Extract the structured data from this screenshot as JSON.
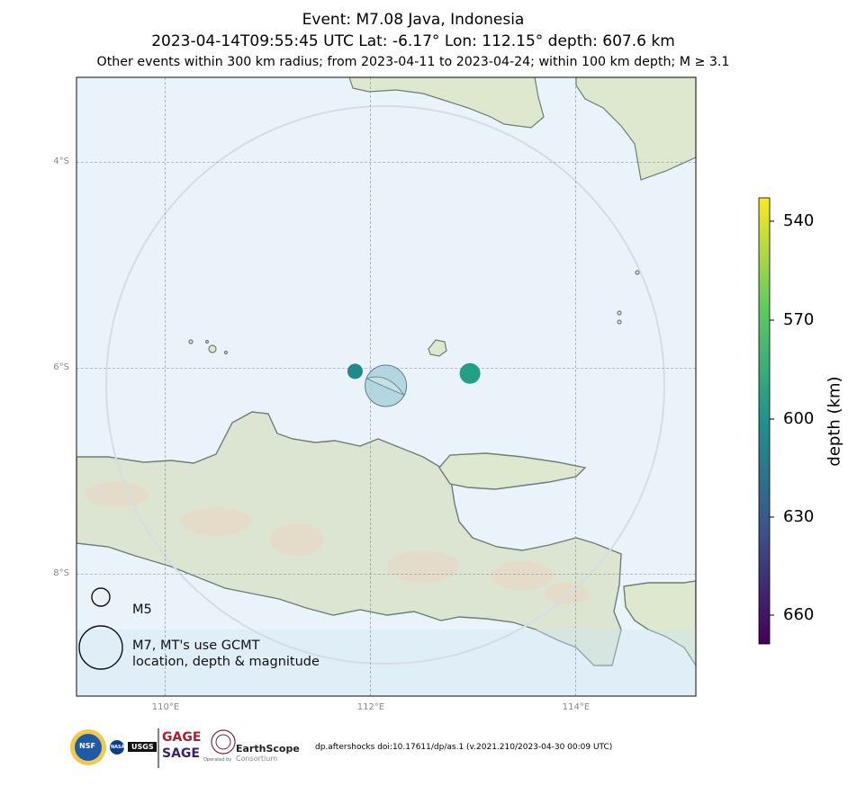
{
  "title": {
    "line1": "Event: M7.08 Java, Indonesia",
    "line2": "2023-04-14T09:55:45 UTC Lat: -6.17° Lon: 112.15° depth: 607.6 km",
    "line3": "Other events within 300 km radius; from 2023-04-11 to 2023-04-24; within 100 km depth; M ≥ 3.1"
  },
  "map": {
    "lat_labels": [
      "4°S",
      "6°S",
      "8°S"
    ],
    "lon_labels": [
      "110°E",
      "112°E",
      "114°E"
    ],
    "main_event": {
      "lat": -6.17,
      "lon": 112.15,
      "magnitude": 7.08,
      "depth_km": 607.6
    },
    "events": [
      {
        "lat": -6.03,
        "lon": 111.85,
        "depth_km": 610,
        "color": "#21898c"
      },
      {
        "lat": -6.05,
        "lon": 112.97,
        "depth_km": 590,
        "color": "#22a085"
      }
    ],
    "legend": {
      "small_label": "M5",
      "large_label_line1": "M7, MT's use GCMT",
      "large_label_line2": "location, depth & magnitude"
    }
  },
  "colorbar": {
    "title": "depth (km)",
    "ticks": [
      "540",
      "570",
      "600",
      "630",
      "660"
    ]
  },
  "footer": {
    "doi": "dp.aftershocks doi:10.17611/dp/as.1 (v.2021.210/2023-04-30 00:09 UTC)",
    "logos": {
      "nsf": "NSF",
      "nasa": "NASA",
      "usgs": "USGS",
      "gage": "GAGE",
      "sage": "SAGE",
      "earthscope": "EarthScope",
      "consortium": "Consortium",
      "operated_by": "Operated by"
    }
  }
}
